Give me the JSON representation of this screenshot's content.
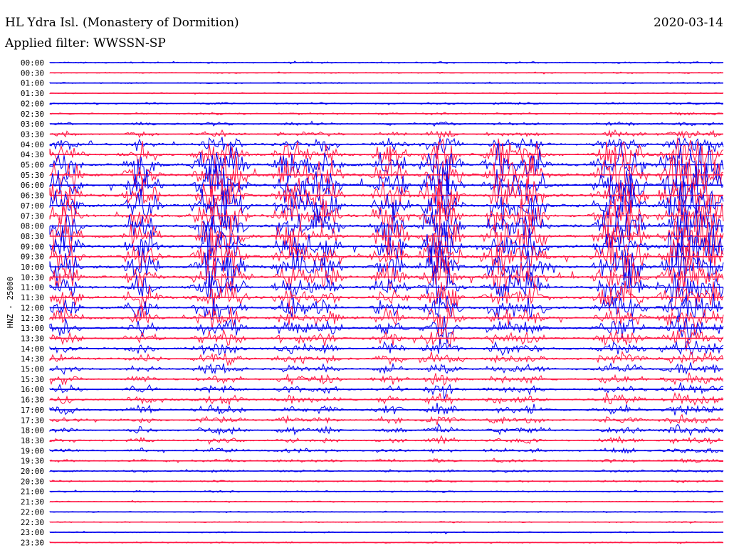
{
  "header": {
    "station": "HL Ydra Isl. (Monastery of Dormition)",
    "date": "2020-03-14",
    "filter": "Applied filter: WWSSN-SP"
  },
  "chart_data": {
    "type": "line",
    "title": "HL Ydra Isl. (Monastery of Dormition)",
    "subtitle": "Applied filter: WWSSN-SP",
    "date": "2020-03-14",
    "ylabel": "HNZ - 25000",
    "ytick_labels": [
      "00:00",
      "00:30",
      "01:00",
      "01:30",
      "02:00",
      "02:30",
      "03:00",
      "03:30",
      "04:00",
      "04:30",
      "05:00",
      "05:30",
      "06:00",
      "06:30",
      "07:00",
      "07:30",
      "08:00",
      "08:30",
      "09:00",
      "09:30",
      "10:00",
      "10:30",
      "11:00",
      "11:30",
      "12:00",
      "12:30",
      "13:00",
      "13:30",
      "14:00",
      "14:30",
      "15:00",
      "15:30",
      "16:00",
      "16:30",
      "17:00",
      "17:30",
      "18:00",
      "18:30",
      "19:00",
      "19:30",
      "20:00",
      "20:30",
      "21:00",
      "21:30",
      "22:00",
      "22:30",
      "23:00",
      "23:30"
    ],
    "trace_colors": [
      "#0000ee",
      "#ff1744"
    ],
    "grid": false,
    "trace_activity": [
      0.15,
      0.1,
      0.12,
      0.1,
      0.18,
      0.18,
      0.25,
      0.35,
      0.55,
      0.85,
      1.0,
      1.0,
      1.0,
      1.0,
      1.0,
      1.0,
      1.0,
      1.0,
      1.0,
      1.0,
      0.95,
      0.9,
      0.85,
      0.8,
      0.75,
      0.7,
      0.65,
      0.6,
      0.55,
      0.5,
      0.45,
      0.45,
      0.45,
      0.45,
      0.45,
      0.4,
      0.4,
      0.35,
      0.3,
      0.25,
      0.2,
      0.18,
      0.15,
      0.12,
      0.1,
      0.1,
      0.1,
      0.1
    ]
  }
}
